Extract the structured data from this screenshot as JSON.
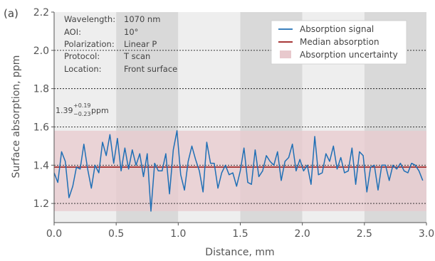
{
  "panel_label": "(a)",
  "info_box": {
    "rows": [
      {
        "key": "Wavelength:",
        "value": "1070 nm"
      },
      {
        "key": "AOI:",
        "value": "10°"
      },
      {
        "key": "Polarization:",
        "value": "Linear P"
      },
      {
        "key": "Protocol:",
        "value": "T scan"
      },
      {
        "key": "Location:",
        "value": "Front surface"
      }
    ]
  },
  "annotation": {
    "value": "1.39",
    "plus": "+0.19",
    "minus": "−0.23",
    "unit": "ppm"
  },
  "colors": {
    "signal": "#1f6fb5",
    "median": "#9b1c1c",
    "uncertainty": "#e8c9cd",
    "band_light": "#eeeeee",
    "band_dark": "#d9d9d9"
  },
  "chart_data": {
    "type": "line",
    "xlabel": "Distance, mm",
    "ylabel": "Surface absorption, ppm",
    "xlim": [
      0.0,
      3.0
    ],
    "ylim": [
      1.1,
      2.2
    ],
    "xticks": [
      "0.0",
      "0.5",
      "1.0",
      "1.5",
      "2.0",
      "2.5",
      "3.0"
    ],
    "yticks": [
      "1.2",
      "1.4",
      "1.6",
      "1.8",
      "2.0",
      "2.2"
    ],
    "grid": "horizontal dotted",
    "legend_position": "top-right",
    "legend": [
      "Absorption signal",
      "Median absorption",
      "Absorption uncertainty"
    ],
    "median": 1.39,
    "uncertainty_band": [
      1.16,
      1.58
    ],
    "series": [
      {
        "name": "Absorption signal",
        "x": [
          0.0,
          0.03,
          0.06,
          0.09,
          0.12,
          0.15,
          0.18,
          0.21,
          0.24,
          0.27,
          0.3,
          0.33,
          0.36,
          0.39,
          0.42,
          0.45,
          0.48,
          0.51,
          0.54,
          0.57,
          0.6,
          0.63,
          0.66,
          0.69,
          0.72,
          0.75,
          0.78,
          0.81,
          0.84,
          0.87,
          0.9,
          0.93,
          0.96,
          0.99,
          1.02,
          1.05,
          1.08,
          1.11,
          1.14,
          1.17,
          1.2,
          1.23,
          1.26,
          1.29,
          1.32,
          1.35,
          1.38,
          1.41,
          1.44,
          1.47,
          1.5,
          1.53,
          1.56,
          1.59,
          1.62,
          1.65,
          1.68,
          1.71,
          1.74,
          1.77,
          1.8,
          1.83,
          1.86,
          1.89,
          1.92,
          1.95,
          1.98,
          2.01,
          2.04,
          2.07,
          2.1,
          2.13,
          2.16,
          2.19,
          2.22,
          2.25,
          2.28,
          2.31,
          2.34,
          2.37,
          2.4,
          2.43,
          2.46,
          2.49,
          2.52,
          2.55,
          2.58,
          2.61,
          2.64,
          2.67,
          2.7,
          2.73,
          2.76,
          2.79,
          2.82,
          2.85,
          2.88,
          2.91,
          2.94,
          2.97
        ],
        "y": [
          1.36,
          1.31,
          1.47,
          1.42,
          1.23,
          1.29,
          1.39,
          1.38,
          1.51,
          1.38,
          1.28,
          1.4,
          1.36,
          1.52,
          1.45,
          1.56,
          1.41,
          1.54,
          1.37,
          1.49,
          1.38,
          1.48,
          1.4,
          1.46,
          1.34,
          1.46,
          1.16,
          1.41,
          1.37,
          1.37,
          1.46,
          1.25,
          1.48,
          1.58,
          1.35,
          1.27,
          1.42,
          1.5,
          1.43,
          1.37,
          1.26,
          1.52,
          1.41,
          1.41,
          1.28,
          1.36,
          1.4,
          1.35,
          1.36,
          1.29,
          1.37,
          1.49,
          1.31,
          1.3,
          1.48,
          1.34,
          1.37,
          1.45,
          1.42,
          1.4,
          1.47,
          1.32,
          1.42,
          1.44,
          1.51,
          1.37,
          1.43,
          1.37,
          1.4,
          1.3,
          1.55,
          1.35,
          1.36,
          1.46,
          1.42,
          1.5,
          1.38,
          1.44,
          1.36,
          1.37,
          1.49,
          1.3,
          1.47,
          1.45,
          1.26,
          1.39,
          1.4,
          1.27,
          1.4,
          1.4,
          1.32,
          1.4,
          1.38,
          1.41,
          1.37,
          1.36,
          1.41,
          1.4,
          1.37,
          1.32
        ]
      },
      {
        "name": "Median absorption",
        "x": [
          0.0,
          3.0
        ],
        "y": [
          1.39,
          1.39
        ]
      }
    ]
  }
}
